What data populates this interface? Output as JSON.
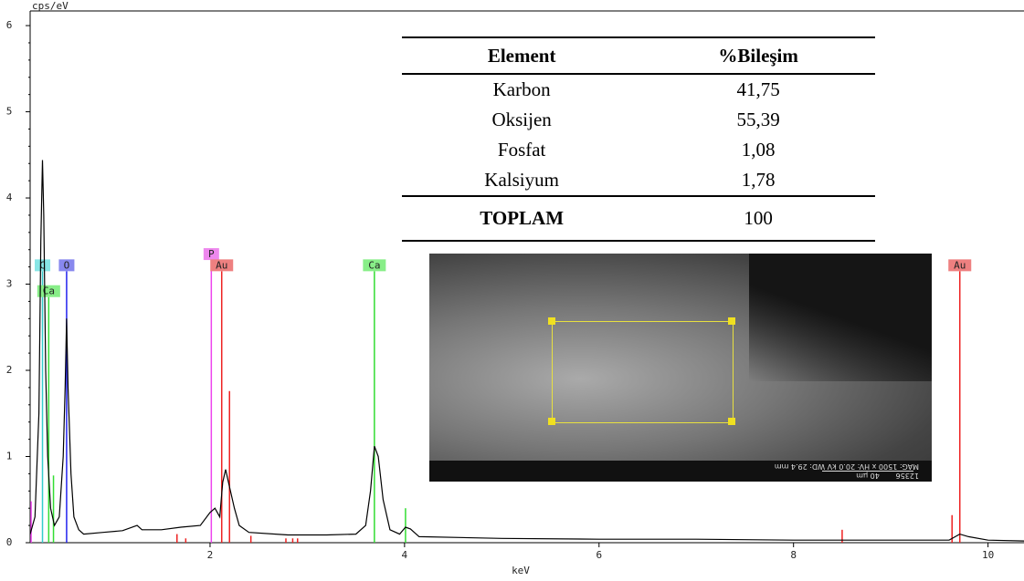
{
  "chart_data": {
    "type": "line",
    "xlabel": "keV",
    "ylabel": "cps/eV",
    "color": "#000000",
    "xlim": [
      0.15,
      10.37
    ],
    "ylim": [
      0,
      6.17
    ],
    "xticks": [
      2,
      4,
      6,
      8,
      10
    ],
    "yticks": [
      0,
      1,
      2,
      3,
      4,
      5,
      6
    ],
    "x": [
      0.15,
      0.2,
      0.24,
      0.26,
      0.277,
      0.29,
      0.31,
      0.33,
      0.36,
      0.4,
      0.45,
      0.49,
      0.51,
      0.525,
      0.54,
      0.57,
      0.6,
      0.65,
      0.7,
      0.9,
      1.1,
      1.25,
      1.3,
      1.5,
      1.7,
      1.9,
      2.0,
      2.05,
      2.1,
      2.13,
      2.16,
      2.2,
      2.25,
      2.3,
      2.4,
      2.8,
      3.2,
      3.5,
      3.6,
      3.65,
      3.69,
      3.73,
      3.78,
      3.85,
      3.95,
      4.01,
      4.06,
      4.15,
      5,
      6,
      7,
      8,
      9,
      9.6,
      9.71,
      9.8,
      10,
      10.37
    ],
    "values": [
      0.1,
      0.3,
      1.5,
      3.5,
      4.44,
      3.8,
      2.0,
      1.0,
      0.4,
      0.2,
      0.3,
      1.0,
      1.8,
      2.6,
      1.8,
      0.8,
      0.3,
      0.15,
      0.1,
      0.12,
      0.14,
      0.2,
      0.15,
      0.15,
      0.18,
      0.2,
      0.35,
      0.4,
      0.3,
      0.7,
      0.85,
      0.65,
      0.4,
      0.2,
      0.12,
      0.09,
      0.09,
      0.1,
      0.2,
      0.6,
      1.12,
      1.0,
      0.5,
      0.15,
      0.1,
      0.18,
      0.16,
      0.07,
      0.05,
      0.04,
      0.04,
      0.03,
      0.03,
      0.03,
      0.1,
      0.07,
      0.03,
      0.02
    ],
    "markers": [
      {
        "name": "C",
        "x": 0.277,
        "y": 3.15,
        "color": "#33cccc",
        "label_color": "#88e6e6"
      },
      {
        "name": "Ca",
        "x": 0.341,
        "y": 2.85,
        "color": "#33dd33",
        "label_color": "#88ee88"
      },
      {
        "name": "O",
        "x": 0.525,
        "y": 3.15,
        "color": "#2222ee",
        "label_color": "#8888ee"
      },
      {
        "name": "P",
        "x": 2.013,
        "y": 3.28,
        "color": "#ee44ee",
        "label_color": "#ee88ee"
      },
      {
        "name": "Au",
        "x": 2.12,
        "y": 3.15,
        "color": "#ee2222",
        "label_color": "#ee8080"
      },
      {
        "name": "Ca",
        "x": 3.69,
        "y": 3.15,
        "color": "#33dd33",
        "label_color": "#88ee88"
      },
      {
        "name": "Au",
        "x": 9.71,
        "y": 3.15,
        "color": "#ee2222",
        "label_color": "#ee8080"
      }
    ],
    "lines": [
      {
        "x": 0.16,
        "y": 0.48,
        "color": "#ee44ee"
      },
      {
        "x": 0.39,
        "y": 0.78,
        "color": "#33dd33"
      },
      {
        "x": 1.66,
        "y": 0.1,
        "color": "#ee2222"
      },
      {
        "x": 1.75,
        "y": 0.05,
        "color": "#ee2222"
      },
      {
        "x": 2.2,
        "y": 1.76,
        "color": "#ee2222"
      },
      {
        "x": 2.42,
        "y": 0.08,
        "color": "#ee2222"
      },
      {
        "x": 2.78,
        "y": 0.05,
        "color": "#ee2222"
      },
      {
        "x": 2.85,
        "y": 0.05,
        "color": "#ee2222"
      },
      {
        "x": 2.9,
        "y": 0.05,
        "color": "#ee2222"
      },
      {
        "x": 4.01,
        "y": 0.4,
        "color": "#33dd33"
      },
      {
        "x": 8.5,
        "y": 0.15,
        "color": "#ee2222"
      },
      {
        "x": 9.63,
        "y": 0.32,
        "color": "#ee2222"
      }
    ]
  },
  "table": {
    "header": [
      "Element",
      "%Bileşim"
    ],
    "rows": [
      [
        "Karbon",
        "41,75"
      ],
      [
        "Oksijen",
        "55,39"
      ],
      [
        "Fosfat",
        "1,08"
      ],
      [
        "Kalsiyum",
        "1,78"
      ],
      [
        "TOPLAM",
        "100"
      ]
    ]
  },
  "image": {
    "scale": "40 µm",
    "id": "12356",
    "info": "MAG: 1500 x   HV: 20.0 kV   WD: 29.4 mm"
  }
}
